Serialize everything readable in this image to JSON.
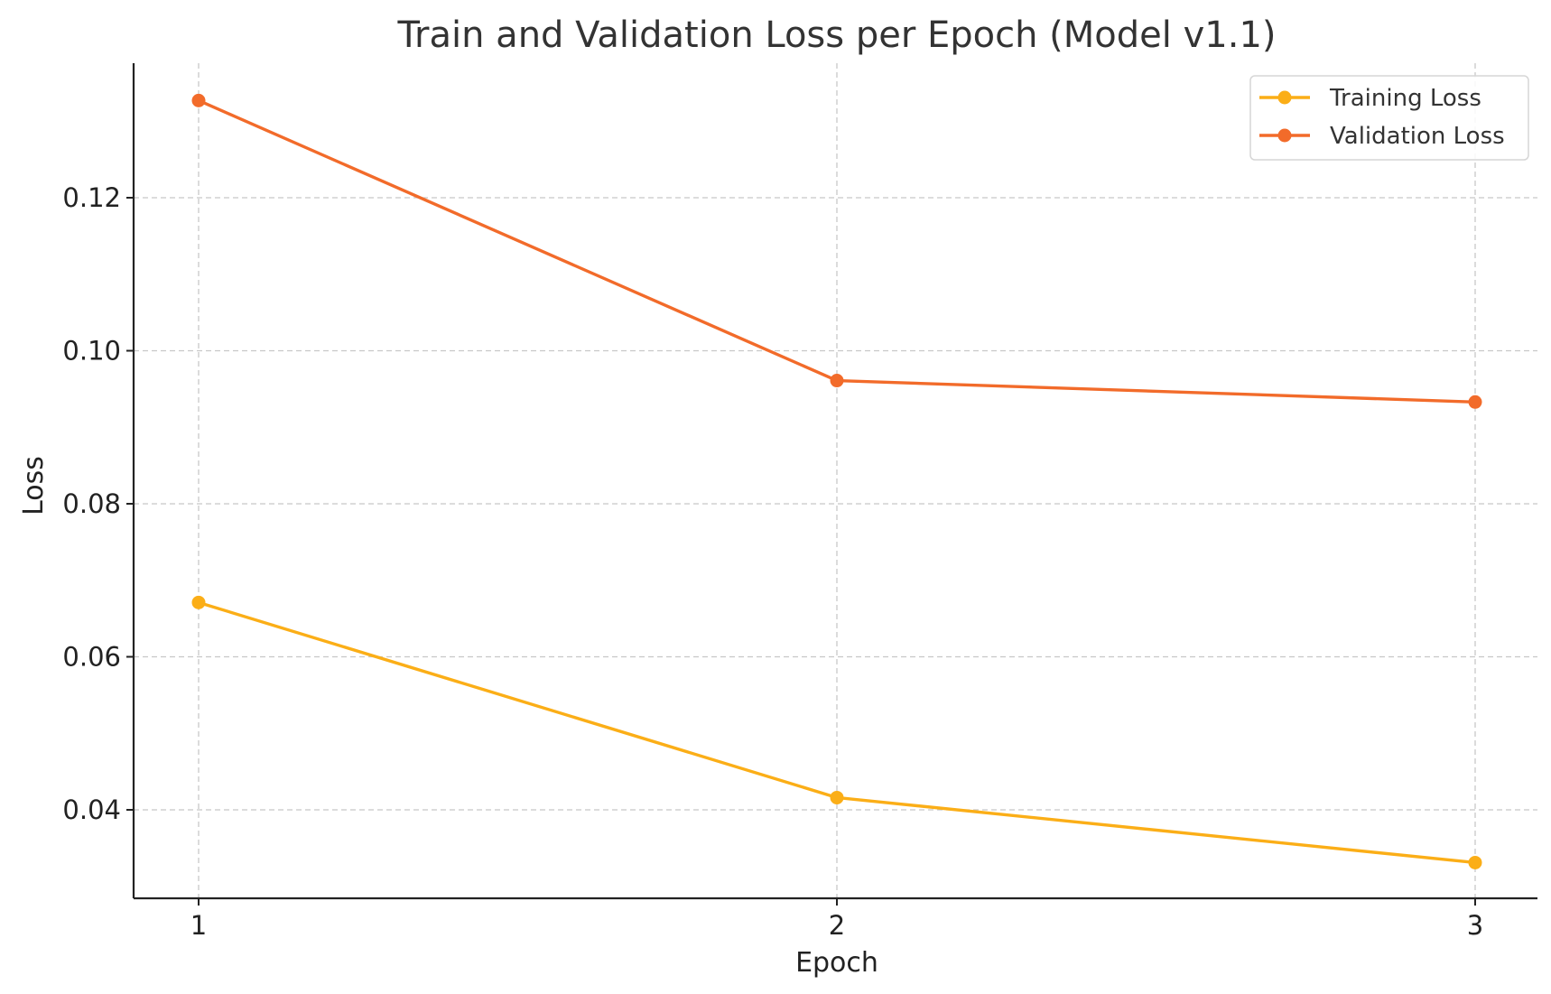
{
  "chart_data": {
    "type": "line",
    "title": "Train and Validation Loss per Epoch (Model v1.1)",
    "xlabel": "Epoch",
    "ylabel": "Loss",
    "x": [
      1,
      2,
      3
    ],
    "x_ticks": [
      "1",
      "2",
      "3"
    ],
    "y_ticks": [
      "0.04",
      "0.06",
      "0.08",
      "0.10",
      "0.12"
    ],
    "ylim": [
      0.028,
      0.138
    ],
    "grid": true,
    "legend_position": "top-right",
    "series": [
      {
        "name": "Training Loss",
        "color": "#FBAE17",
        "marker": "circle",
        "values": [
          0.0671,
          0.0416,
          0.0331
        ]
      },
      {
        "name": "Validation Loss",
        "color": "#F26B2A",
        "marker": "circle",
        "values": [
          0.1327,
          0.0961,
          0.0933
        ]
      }
    ]
  }
}
